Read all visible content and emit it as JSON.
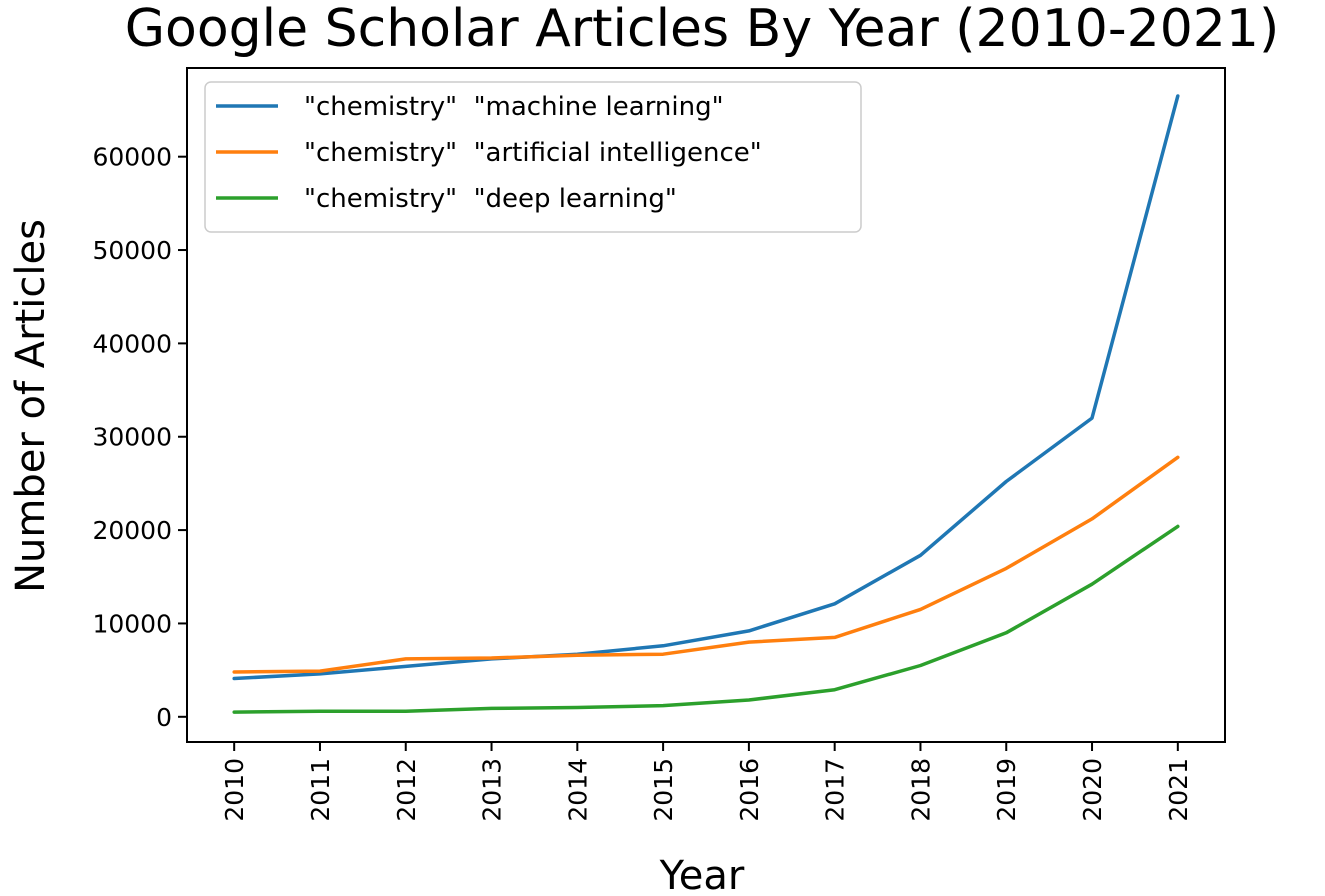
{
  "chart_data": {
    "type": "line",
    "title": "Google Scholar Articles By Year (2010-2021)",
    "xlabel": "Year",
    "ylabel": "Number of Articles",
    "x": [
      2010,
      2011,
      2012,
      2013,
      2014,
      2015,
      2016,
      2017,
      2018,
      2019,
      2020,
      2021
    ],
    "ylim": [
      -2700,
      69500
    ],
    "yticks": [
      0,
      10000,
      20000,
      30000,
      40000,
      50000,
      60000
    ],
    "grid": false,
    "legend": "top-left",
    "series": [
      {
        "name": "\"chemistry\"  \"machine learning\"",
        "color": "#1f77b4",
        "values": [
          4100,
          4600,
          5400,
          6200,
          6700,
          7600,
          9200,
          12100,
          17300,
          25200,
          32000,
          66500
        ]
      },
      {
        "name": "\"chemistry\"  \"artificial intelligence\"",
        "color": "#ff7f0e",
        "values": [
          4800,
          4900,
          6200,
          6300,
          6600,
          6700,
          8000,
          8500,
          11500,
          15900,
          21200,
          27800
        ]
      },
      {
        "name": "\"chemistry\"  \"deep learning\"",
        "color": "#2ca02c",
        "values": [
          500,
          600,
          600,
          900,
          1000,
          1200,
          1800,
          2900,
          5500,
          9000,
          14200,
          20400
        ]
      }
    ]
  }
}
